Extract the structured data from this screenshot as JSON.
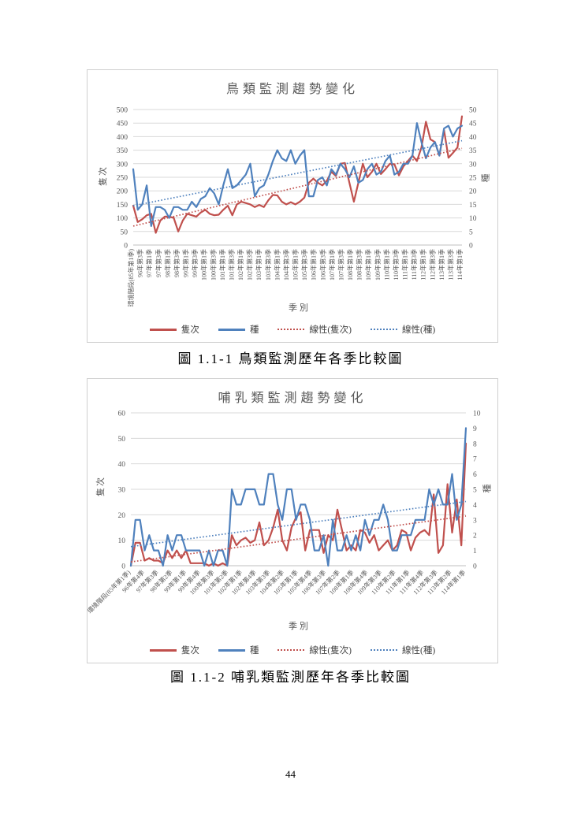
{
  "page": {
    "number": "44"
  },
  "figures": [
    {
      "caption": "圖 1.1-1 鳥類監測歷年各季比較圖"
    },
    {
      "caption": "圖 1.1-2 哺乳類監測歷年各季比較圖"
    }
  ],
  "chart_data": [
    {
      "type": "line",
      "title": "鳥類監測趨勢變化",
      "xlabel": "季別",
      "x_tick_labels": [
        "環境階段(85年第1季)",
        "96年第3季",
        "97年第1季",
        "97年第3季",
        "98年第1季",
        "98年第3季",
        "99年第1季",
        "99年第3季",
        "100年第1季",
        "100年第3季",
        "101年第1季",
        "101年第3季",
        "102年第1季",
        "102年第3季",
        "103年第1季",
        "103年第3季",
        "104年第1季",
        "104年第3季",
        "105年第1季",
        "105年第3季",
        "106年第1季",
        "106年第3季",
        "107年第1季",
        "107年第3季",
        "108年第1季",
        "108年第3季",
        "109年第1季",
        "109年第3季",
        "110年第1季",
        "110年第3季",
        "111年第1季",
        "111年第3季",
        "112年第1季",
        "112年第3季",
        "113年第1季",
        "113年第3季",
        "114年第1季"
      ],
      "y_left": {
        "title": "隻次",
        "min": 0,
        "max": 500,
        "step": 50
      },
      "y_right": {
        "title": "種",
        "min": 0,
        "max": 50,
        "step": 5
      },
      "legend": [
        "隻次",
        "種",
        "線性(隻次)",
        "線性(種)"
      ],
      "grid": true,
      "legend_position": "bottom",
      "series": [
        {
          "name": "隻次",
          "axis": "left",
          "color": "#C0504D",
          "style": "solid",
          "values": [
            145,
            85,
            95,
            110,
            115,
            45,
            90,
            105,
            105,
            100,
            50,
            90,
            115,
            110,
            105,
            120,
            130,
            115,
            110,
            112,
            130,
            145,
            110,
            150,
            160,
            155,
            150,
            140,
            148,
            140,
            165,
            185,
            183,
            160,
            150,
            158,
            150,
            160,
            175,
            230,
            245,
            230,
            220,
            237,
            270,
            255,
            300,
            303,
            230,
            160,
            230,
            300,
            250,
            270,
            300,
            262,
            280,
            300,
            298,
            257,
            290,
            310,
            330,
            310,
            360,
            455,
            390,
            380,
            330,
            425,
            322,
            340,
            360,
            475
          ]
        },
        {
          "name": "種",
          "axis": "right",
          "color": "#4F81BD",
          "style": "solid",
          "values": [
            28,
            13,
            15,
            22,
            7,
            14,
            14,
            13,
            10,
            14,
            14,
            13,
            13,
            16,
            14,
            17,
            18,
            21,
            19,
            15,
            22,
            28,
            21,
            22,
            24,
            26,
            30,
            18,
            21,
            22,
            26,
            31,
            35,
            32,
            31,
            35,
            30,
            33,
            35,
            18,
            18,
            24,
            25,
            22,
            28,
            26,
            30,
            28,
            25,
            29,
            23,
            24,
            28,
            30,
            26,
            27,
            31,
            33,
            26,
            27,
            30,
            30,
            33,
            45,
            38,
            32,
            36,
            38,
            33,
            43,
            44,
            40,
            43,
            44
          ]
        },
        {
          "name": "線性(隻次)",
          "axis": "left",
          "color": "#C0504D",
          "style": "dotted",
          "trend": [
            70,
            357
          ]
        },
        {
          "name": "線性(種)",
          "axis": "right",
          "color": "#4F81BD",
          "style": "dotted",
          "trend": [
            14.5,
            38.5
          ]
        }
      ]
    },
    {
      "type": "line",
      "title": "哺乳類監測趨勢變化",
      "xlabel": "季別",
      "x_tick_labels": [
        "環境階段(85年第1季)",
        "96年第4季",
        "97年第3季",
        "98年第2季",
        "99年第1季",
        "99年第4季",
        "100年第3季",
        "101年第2季",
        "102年第1季",
        "102年第4季",
        "103年第3季",
        "104年第2季",
        "105年第1季",
        "105年第4季",
        "106年第3季",
        "107年第2季",
        "108年第1季",
        "108年第4季",
        "109年第3季",
        "110年第2季",
        "111年第1季",
        "111年第4季",
        "112年第3季",
        "113年第2季",
        "114年第1季"
      ],
      "y_left": {
        "title": "隻次",
        "min": 0,
        "max": 60,
        "step": 10
      },
      "y_right": {
        "title": "種",
        "min": 0,
        "max": 10,
        "step": 1
      },
      "legend": [
        "隻次",
        "種",
        "線性(隻次)",
        "線性(種)"
      ],
      "grid": true,
      "legend_position": "bottom",
      "series": [
        {
          "name": "隻次",
          "axis": "left",
          "color": "#C0504D",
          "style": "solid",
          "values": [
            0,
            9,
            9,
            2,
            3,
            2,
            2,
            1,
            6,
            3,
            6,
            3,
            6,
            1,
            1,
            1,
            1,
            0,
            1,
            0,
            1,
            0,
            12,
            8,
            10,
            11,
            9,
            10,
            17,
            8,
            10,
            15,
            22,
            10,
            6,
            15,
            19,
            21,
            6,
            14,
            14,
            14,
            5,
            12,
            10,
            22,
            14,
            6,
            8,
            6,
            14,
            13,
            9,
            12,
            6,
            8,
            10,
            6,
            8,
            14,
            13,
            6,
            11,
            13,
            14,
            12,
            28,
            5,
            8,
            32,
            13,
            26,
            8,
            48
          ]
        },
        {
          "name": "種",
          "axis": "right",
          "color": "#4F81BD",
          "style": "solid",
          "values": [
            0,
            3,
            3,
            1,
            2,
            1,
            1,
            0,
            2,
            1,
            2,
            2,
            1,
            1,
            1,
            1,
            0,
            1,
            0,
            1,
            1,
            0,
            5,
            4,
            4,
            5,
            5,
            5,
            4,
            4,
            6,
            6,
            4,
            3,
            5,
            5,
            3,
            4,
            4,
            3,
            1,
            1,
            2,
            0,
            3,
            1,
            1,
            2,
            1,
            2,
            1,
            3,
            2,
            3,
            3,
            4,
            3,
            1,
            1,
            2,
            2,
            2,
            3,
            3,
            3,
            5,
            4,
            5,
            4,
            4,
            6,
            3,
            4,
            9
          ]
        },
        {
          "name": "線性(隻次)",
          "axis": "left",
          "color": "#C0504D",
          "style": "dotted",
          "trend": [
            1.5,
            19.5
          ]
        },
        {
          "name": "線性(種)",
          "axis": "right",
          "color": "#4F81BD",
          "style": "dotted",
          "trend": [
            1.25,
            4.2
          ]
        }
      ]
    }
  ]
}
